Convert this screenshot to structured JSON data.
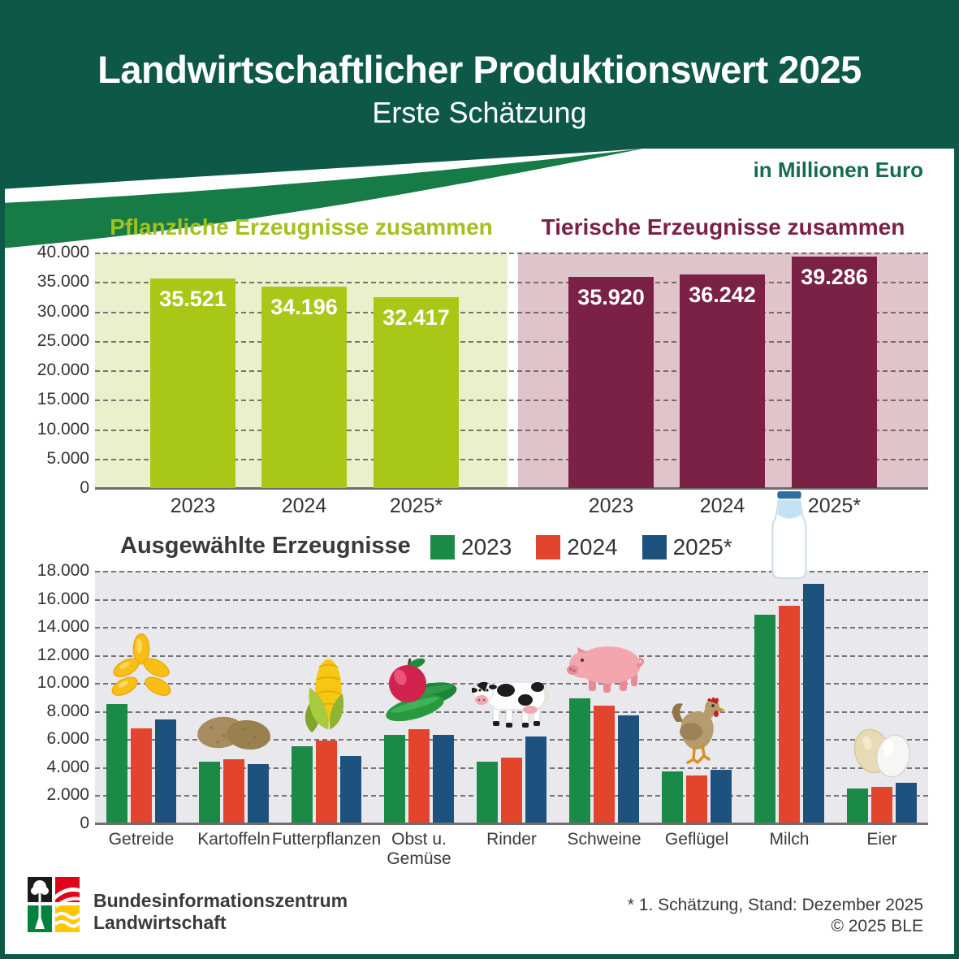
{
  "header": {
    "title": "Landwirtschaftlicher Produktionswert 2025",
    "subtitle": "Erste Schätzung",
    "unit_note": "in Millionen Euro"
  },
  "colors": {
    "header_green": "#0E5848",
    "swoosh_green": "#177B46",
    "plant_bar": "#A8C717",
    "plant_panel_bg": "#EAEFCC",
    "plant_title": "#A2C11E",
    "animal_bar": "#7B2145",
    "animal_panel_bg": "#DFC5CB",
    "animal_title": "#7B2145",
    "series_2023": "#1B8A47",
    "series_2024": "#E2452B",
    "series_2025": "#1C527D",
    "bottom_plot_bg": "#E9E9ED"
  },
  "chart_data": [
    {
      "type": "bar",
      "title": "Pflanzliche Erzeugnisse zusammen",
      "categories": [
        "2023",
        "2024",
        "2025*"
      ],
      "values": [
        35521,
        34196,
        32417
      ],
      "value_labels": [
        "35.521",
        "34.196",
        "32.417"
      ],
      "xlabel": "",
      "ylabel": "in Millionen Euro",
      "ylim": [
        0,
        40000
      ],
      "ytick_step": 5000,
      "grid": true,
      "bar_color": "#A8C717",
      "panel_bg": "#EAEFCC"
    },
    {
      "type": "bar",
      "title": "Tierische Erzeugnisse zusammen",
      "categories": [
        "2023",
        "2024",
        "2025*"
      ],
      "values": [
        35920,
        36242,
        39286
      ],
      "value_labels": [
        "35.920",
        "36.242",
        "39.286"
      ],
      "xlabel": "",
      "ylabel": "in Millionen Euro",
      "ylim": [
        0,
        40000
      ],
      "ytick_step": 5000,
      "grid": true,
      "bar_color": "#7B2145",
      "panel_bg": "#DFC5CB"
    },
    {
      "type": "grouped-bar",
      "title": "Ausgewählte Erzeugnisse",
      "categories": [
        "Getreide",
        "Kartoffeln",
        "Futterpflanzen",
        "Obst u. Gemüse",
        "Rinder",
        "Schweine",
        "Geflügel",
        "Milch",
        "Eier"
      ],
      "icons": [
        "wheat-icon",
        "potatoes-icon",
        "corn-icon",
        "fruit-vegetables-icon",
        "cow-icon",
        "pig-icon",
        "chicken-icon",
        "milk-bottle-icon",
        "eggs-icon"
      ],
      "series": [
        {
          "name": "2023",
          "color": "#1B8A47",
          "values": [
            8500,
            4400,
            5500,
            6300,
            4400,
            8900,
            3700,
            14900,
            2500
          ]
        },
        {
          "name": "2024",
          "color": "#E2452B",
          "values": [
            6800,
            4600,
            5900,
            6700,
            4700,
            8400,
            3400,
            15500,
            2600
          ]
        },
        {
          "name": "2025*",
          "color": "#1C527D",
          "values": [
            7400,
            4200,
            4800,
            6300,
            6200,
            7700,
            3800,
            17100,
            2900
          ]
        }
      ],
      "ylabel": "in Millionen Euro",
      "ylim": [
        0,
        18000
      ],
      "ytick_step": 2000,
      "grid": true,
      "legend_position": "top"
    }
  ],
  "footer": {
    "logo_icon": "ble-logo",
    "org_line1": "Bundesinformationszentrum",
    "org_line2": "Landwirtschaft",
    "note": "* 1. Schätzung, Stand: Dezember 2025",
    "copyright": "© 2025 BLE"
  }
}
